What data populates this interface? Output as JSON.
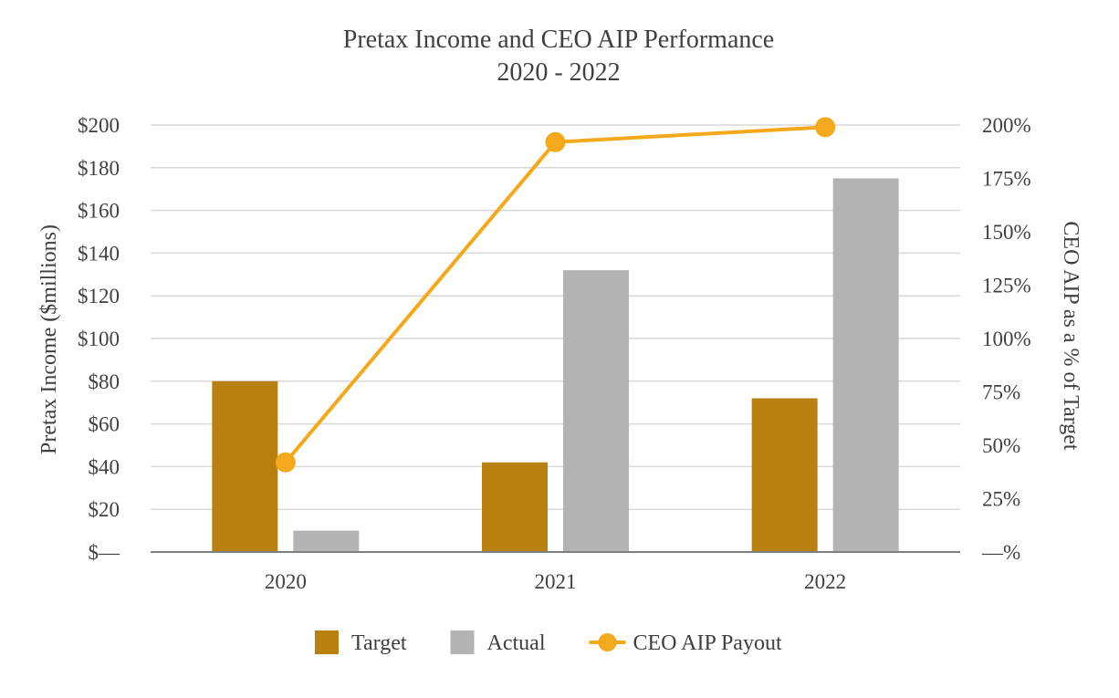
{
  "chart_data": {
    "type": "bar",
    "title": "Pretax Income and CEO AIP Performance",
    "subtitle": "2020 - 2022",
    "categories": [
      "2020",
      "2021",
      "2022"
    ],
    "series": [
      {
        "name": "Target",
        "type": "bar",
        "axis": "left",
        "color": "#b8800f",
        "values": [
          80,
          42,
          72
        ]
      },
      {
        "name": "Actual",
        "type": "bar",
        "axis": "left",
        "color": "#b3b3b3",
        "values": [
          10,
          132,
          175
        ]
      },
      {
        "name": "CEO AIP Payout",
        "type": "line",
        "axis": "right",
        "color": "#f4a81c",
        "values": [
          42,
          192,
          199
        ]
      }
    ],
    "ylabel": "Pretax Income ($millions)",
    "ylabel_right": "CEO AIP as a % of Target",
    "ylim": [
      0,
      200
    ],
    "ylim_right": [
      0,
      200
    ],
    "yticks": [
      0,
      20,
      40,
      60,
      80,
      100,
      120,
      140,
      160,
      180,
      200
    ],
    "yticklabels": [
      "$—",
      "$20",
      "$40",
      "$60",
      "$80",
      "$100",
      "$120",
      "$140",
      "$160",
      "$180",
      "$200"
    ],
    "yticks_right": [
      0,
      25,
      50,
      75,
      100,
      125,
      150,
      175,
      200
    ],
    "yticklabels_right": [
      "—%",
      "25%",
      "50%",
      "75%",
      "100%",
      "125%",
      "150%",
      "175%",
      "200%"
    ],
    "grid": true,
    "legend_position": "bottom-center"
  }
}
